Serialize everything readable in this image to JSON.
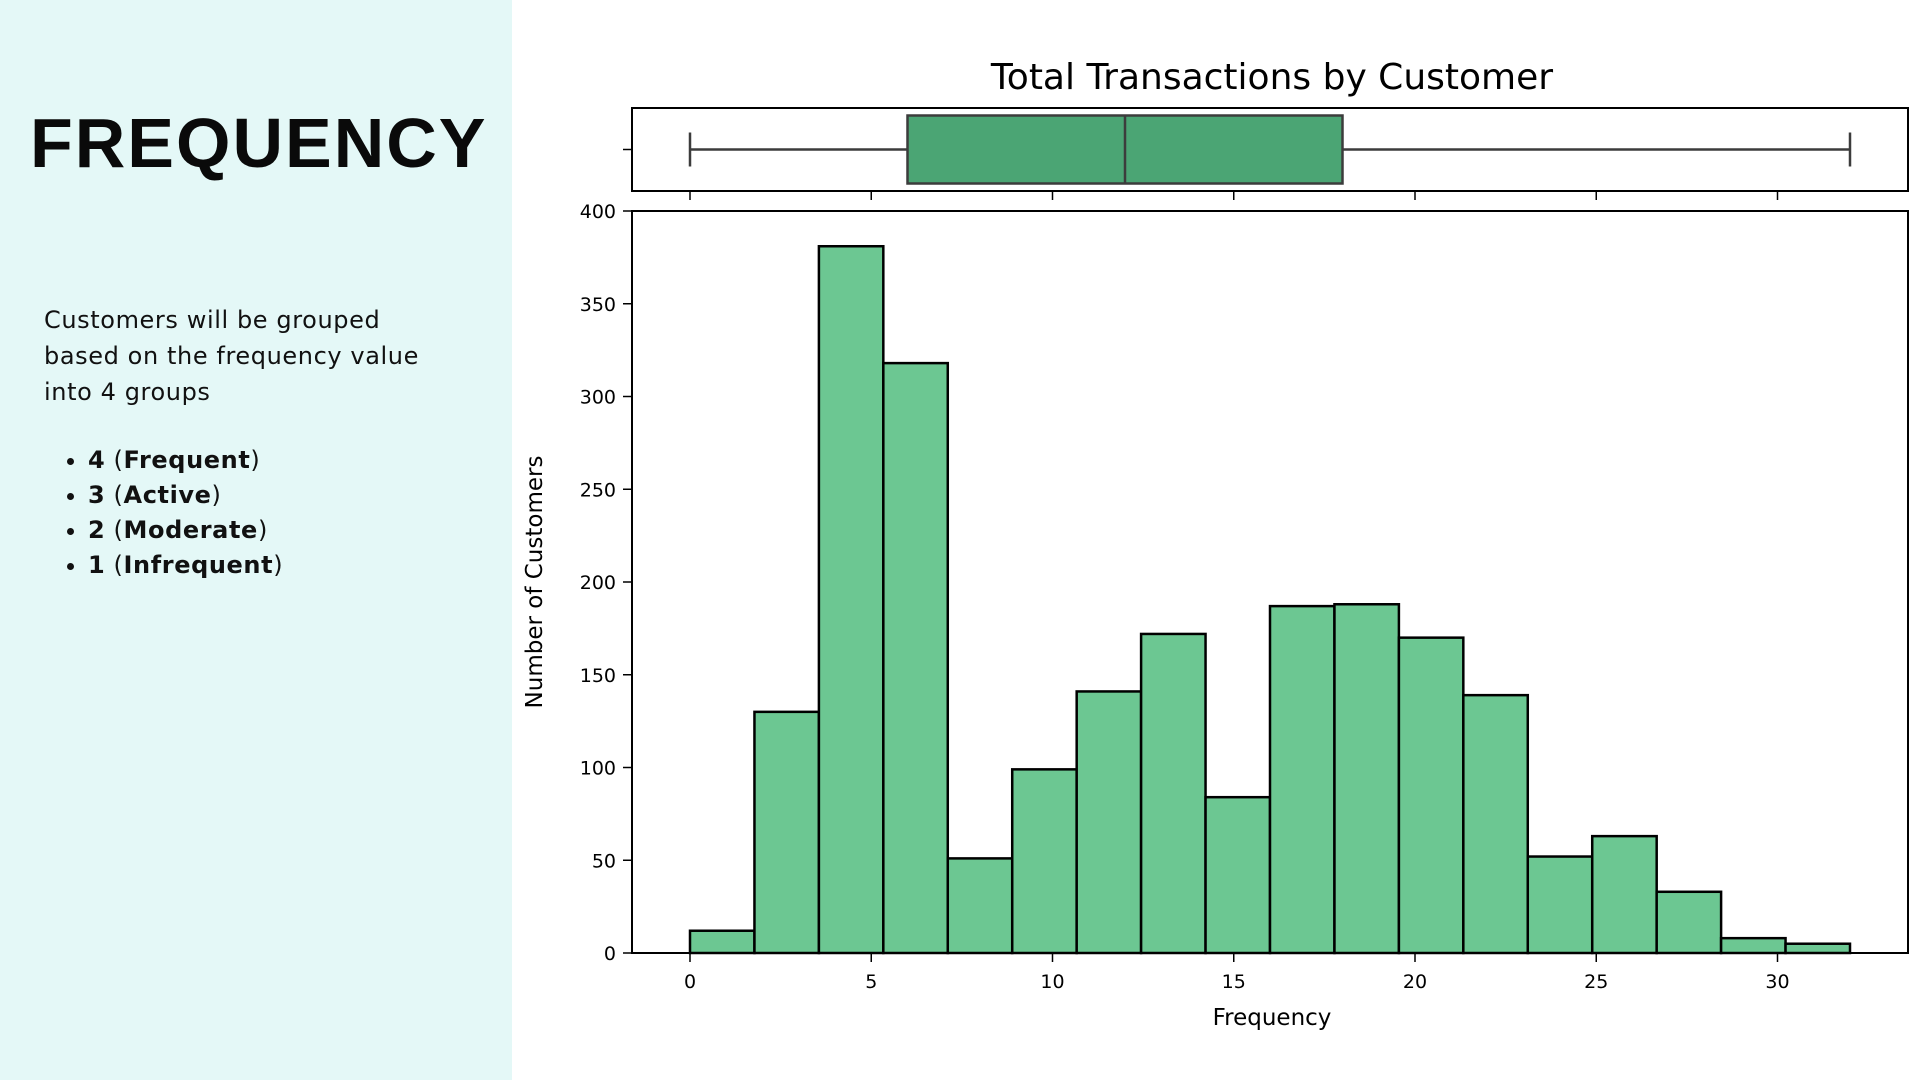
{
  "slide": {
    "heading": "FREQUENCY",
    "intro": "Customers will be grouped based on the frequency value into 4 groups",
    "groups": [
      {
        "number": "4",
        "label": "Frequent"
      },
      {
        "number": "3",
        "label": "Active"
      },
      {
        "number": "2",
        "label": "Moderate"
      },
      {
        "number": "1",
        "label": "Infrequent"
      }
    ]
  },
  "colors": {
    "panel_bg": "#e4f8f7",
    "hist_fill": "#6cc792",
    "box_fill": "#4ba574",
    "edge": "#000000",
    "whisker": "#3c3c3c"
  },
  "chart_data": {
    "type": "histogram",
    "title": "Total Transactions by Customer",
    "xlabel": "Frequency",
    "ylabel": "Number of Customers",
    "xlim": [
      -1.6,
      33.6
    ],
    "ylim": [
      0,
      400
    ],
    "xticks": [
      0,
      5,
      10,
      15,
      20,
      25,
      30
    ],
    "yticks": [
      0,
      50,
      100,
      150,
      200,
      250,
      300,
      350,
      400
    ],
    "bin_edges": [
      0,
      1.778,
      3.556,
      5.333,
      7.111,
      8.889,
      10.667,
      12.444,
      14.222,
      16.0,
      17.778,
      19.556,
      21.333,
      23.111,
      24.889,
      26.667,
      28.444,
      30.222,
      32.0
    ],
    "counts": [
      12,
      130,
      381,
      318,
      51,
      99,
      141,
      172,
      84,
      187,
      188,
      170,
      139,
      52,
      63,
      33,
      8,
      5
    ],
    "boxplot": {
      "min": 0,
      "q1": 6,
      "median": 12,
      "q3": 18,
      "max": 32
    },
    "grid": false
  }
}
